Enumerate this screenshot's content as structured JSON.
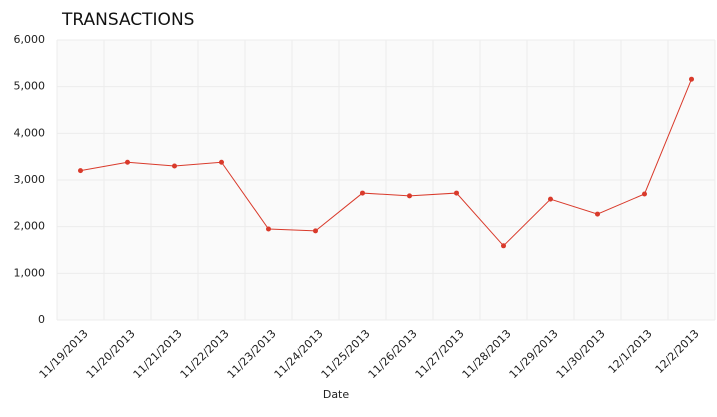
{
  "chart_data": {
    "type": "line",
    "title": "TRANSACTIONS",
    "x_label": "Date",
    "categories": [
      "11/19/2013",
      "11/20/2013",
      "11/21/2013",
      "11/22/2013",
      "11/23/2013",
      "11/24/2013",
      "11/25/2013",
      "11/26/2013",
      "11/27/2013",
      "11/28/2013",
      "11/29/2013",
      "11/30/2013",
      "12/1/2013",
      "12/2/2013"
    ],
    "series": [
      {
        "name": "Transactions",
        "color": "#d93a2b",
        "values": [
          3200,
          3380,
          3300,
          3380,
          1950,
          1910,
          2720,
          2660,
          2720,
          1590,
          2590,
          2270,
          2700,
          5160
        ]
      }
    ],
    "ylim": [
      0,
      6000
    ],
    "yticks": [
      0,
      {
        "value": 1000,
        "label": "1,000"
      },
      {
        "value": 2000,
        "label": "2,000"
      },
      {
        "value": 3000,
        "label": "3,000"
      },
      {
        "value": 4000,
        "label": "4,000"
      },
      {
        "value": 5000,
        "label": "5,000"
      },
      {
        "value": 6000,
        "label": "6,000"
      }
    ],
    "grid": true
  }
}
